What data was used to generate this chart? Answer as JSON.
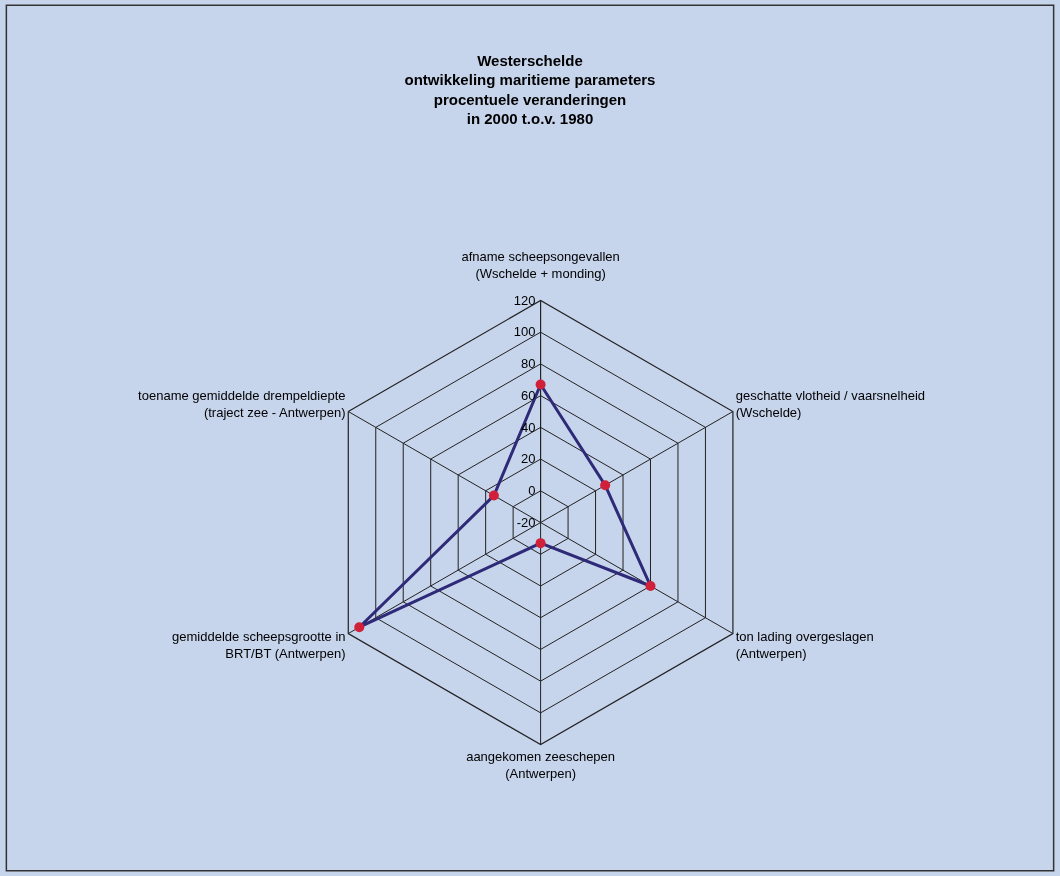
{
  "chart_data": {
    "type": "radar",
    "title": "Westerschelde\nontwikkeling maritieme parameters\nprocentuele veranderingen\nin 2000 t.o.v. 1980",
    "categories": [
      "afname scheepsongevallen\n(Wschelde + monding)",
      "geschatte vlotheid / vaarsnelheid\n(Wschelde)",
      "ton lading overgeslagen\n(Antwerpen)",
      "aangekomen zeeschepen\n(Antwerpen)",
      "gemiddelde scheepsgrootte in\nBRT/BT (Antwerpen)",
      "toename gemiddelde drempeldiepte\n(traject zee - Antwerpen)"
    ],
    "series": [
      {
        "color": "#2e2a78",
        "colors": [
          "#d0203a",
          "#d0203a",
          "#d0203a",
          "#d0203a",
          "#d0203a",
          "#d0203a"
        ],
        "values": [
          67,
          27,
          60,
          -7,
          112,
          14
        ]
      }
    ],
    "ylim": [
      -20,
      120
    ],
    "yticks": [
      -20,
      0,
      20,
      40,
      60,
      80,
      100,
      120
    ],
    "grid": true,
    "marker": "circle",
    "line_style": "solid"
  }
}
